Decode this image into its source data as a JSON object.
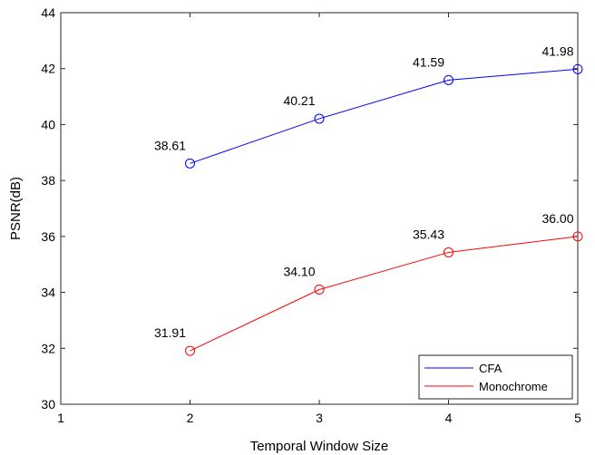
{
  "chart_data": {
    "type": "line",
    "title": "",
    "xlabel": "Temporal Window Size",
    "ylabel": "PSNR(dB)",
    "xlim": [
      1,
      5
    ],
    "ylim": [
      30,
      44
    ],
    "xticks": [
      1,
      2,
      3,
      4,
      5
    ],
    "yticks": [
      30,
      32,
      34,
      36,
      38,
      40,
      42,
      44
    ],
    "grid": false,
    "legend_position": "bottom-right",
    "x": [
      2,
      3,
      4,
      5
    ],
    "series": [
      {
        "name": "CFA",
        "color": "#0000ff",
        "marker": "circle",
        "values": [
          38.61,
          40.21,
          41.59,
          41.98
        ],
        "labels": [
          "38.61",
          "40.21",
          "41.59",
          "41.98"
        ]
      },
      {
        "name": "Monochrome",
        "color": "#ff0000",
        "marker": "circle",
        "values": [
          31.91,
          34.1,
          35.43,
          36.0
        ],
        "labels": [
          "31.91",
          "34.10",
          "35.43",
          "36.00"
        ]
      }
    ]
  }
}
